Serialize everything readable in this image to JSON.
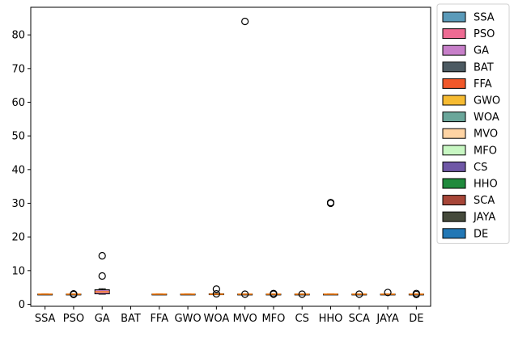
{
  "chart_data": {
    "type": "box",
    "categories": [
      "SSA",
      "PSO",
      "GA",
      "BAT",
      "FFA",
      "GWO",
      "WOA",
      "MVO",
      "MFO",
      "CS",
      "HHO",
      "SCA",
      "JAYA",
      "DE"
    ],
    "series": [
      {
        "name": "SSA",
        "color": "#5a9ab9",
        "median": 3.0,
        "q1": 2.98,
        "q3": 3.02,
        "whislo": 2.96,
        "whishi": 3.04,
        "fliers": []
      },
      {
        "name": "PSO",
        "color": "#ee6b93",
        "median": 3.0,
        "q1": 2.98,
        "q3": 3.02,
        "whislo": 2.96,
        "whishi": 3.04,
        "fliers": [
          3.1,
          2.9
        ]
      },
      {
        "name": "GA",
        "color": "#c77fc9",
        "median": 3.7,
        "q1": 3.1,
        "q3": 4.3,
        "whislo": 3.0,
        "whishi": 4.6,
        "fliers": [
          14.4,
          8.4
        ]
      },
      {
        "name": "BAT",
        "color": "#4c5a62",
        "median": null,
        "q1": null,
        "q3": null,
        "whislo": null,
        "whishi": null,
        "fliers": []
      },
      {
        "name": "FFA",
        "color": "#f1582a",
        "median": 3.0,
        "q1": 2.98,
        "q3": 3.02,
        "whislo": 2.96,
        "whishi": 3.04,
        "fliers": []
      },
      {
        "name": "GWO",
        "color": "#f6bb32",
        "median": 3.0,
        "q1": 2.98,
        "q3": 3.02,
        "whislo": 2.96,
        "whishi": 3.04,
        "fliers": []
      },
      {
        "name": "WOA",
        "color": "#6aa69a",
        "median": 3.0,
        "q1": 2.95,
        "q3": 3.1,
        "whislo": 2.9,
        "whishi": 3.2,
        "fliers": [
          4.5,
          3.1
        ]
      },
      {
        "name": "MVO",
        "color": "#ffd4a4",
        "median": 3.0,
        "q1": 2.98,
        "q3": 3.02,
        "whislo": 2.96,
        "whishi": 3.04,
        "fliers": [
          84.0,
          3.0
        ]
      },
      {
        "name": "MFO",
        "color": "#c8f7c3",
        "median": 3.0,
        "q1": 2.98,
        "q3": 3.02,
        "whislo": 2.96,
        "whishi": 3.04,
        "fliers": [
          3.2,
          3.0
        ]
      },
      {
        "name": "CS",
        "color": "#6f57a6",
        "median": 3.0,
        "q1": 2.98,
        "q3": 3.02,
        "whislo": 2.96,
        "whishi": 3.04,
        "fliers": [
          3.0
        ]
      },
      {
        "name": "HHO",
        "color": "#1f8a3c",
        "median": 3.0,
        "q1": 2.98,
        "q3": 3.02,
        "whislo": 2.96,
        "whishi": 3.04,
        "fliers": [
          30.2,
          30.0
        ]
      },
      {
        "name": "SCA",
        "color": "#a74638",
        "median": 3.0,
        "q1": 2.98,
        "q3": 3.02,
        "whislo": 2.96,
        "whishi": 3.04,
        "fliers": [
          3.0
        ]
      },
      {
        "name": "JAYA",
        "color": "#454a3b",
        "median": 3.0,
        "q1": 2.98,
        "q3": 3.02,
        "whislo": 2.96,
        "whishi": 3.04,
        "fliers": [
          3.5
        ]
      },
      {
        "name": "DE",
        "color": "#2277b5",
        "median": 3.0,
        "q1": 2.98,
        "q3": 3.02,
        "whislo": 2.96,
        "whishi": 3.04,
        "fliers": [
          3.2,
          2.9
        ]
      }
    ],
    "title": "",
    "xlabel": "",
    "ylabel": "",
    "ylim": [
      -0.6,
      88.2
    ],
    "yticks": [
      0,
      10,
      20,
      30,
      40,
      50,
      60,
      70,
      80
    ],
    "median_color": "#ff7f0e",
    "grid": false,
    "legend_position": "right-outside"
  }
}
